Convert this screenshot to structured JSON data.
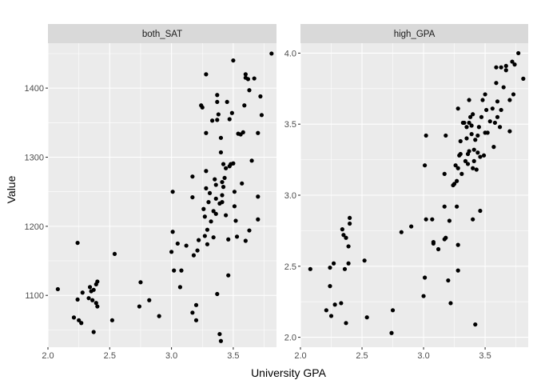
{
  "chart_data": {
    "type": "scatter",
    "xlabel": "University GPA",
    "ylabel": "Value",
    "panels": [
      {
        "facet": "both_SAT",
        "xlim": [
          2.0,
          3.85
        ],
        "ylim": [
          1025,
          1465
        ],
        "xticks": [
          2.0,
          2.5,
          3.0,
          3.5
        ],
        "xtick_labels": [
          "2.0",
          "2.5",
          "3.0",
          "3.5"
        ],
        "yticks": [
          1100,
          1200,
          1300,
          1400
        ],
        "ytick_labels": [
          "1100",
          "1200",
          "1300",
          "1400"
        ],
        "points": [
          [
            2.08,
            1109
          ],
          [
            2.21,
            1068
          ],
          [
            2.24,
            1094
          ],
          [
            2.24,
            1176
          ],
          [
            2.25,
            1064
          ],
          [
            2.27,
            1060
          ],
          [
            2.28,
            1104
          ],
          [
            2.33,
            1096
          ],
          [
            2.34,
            1112
          ],
          [
            2.35,
            1106
          ],
          [
            2.36,
            1093
          ],
          [
            2.37,
            1108
          ],
          [
            2.37,
            1047
          ],
          [
            2.39,
            1116
          ],
          [
            2.4,
            1120
          ],
          [
            2.39,
            1089
          ],
          [
            2.4,
            1084
          ],
          [
            2.52,
            1064
          ],
          [
            2.54,
            1160
          ],
          [
            2.74,
            1084
          ],
          [
            2.75,
            1119
          ],
          [
            2.82,
            1093
          ],
          [
            2.9,
            1070
          ],
          [
            3.0,
            1163
          ],
          [
            3.01,
            1192
          ],
          [
            3.01,
            1250
          ],
          [
            3.02,
            1136
          ],
          [
            3.05,
            1175
          ],
          [
            3.07,
            1112
          ],
          [
            3.08,
            1136
          ],
          [
            3.12,
            1172
          ],
          [
            3.17,
            1242
          ],
          [
            3.17,
            1272
          ],
          [
            3.17,
            1075
          ],
          [
            3.18,
            1158
          ],
          [
            3.2,
            1064
          ],
          [
            3.2,
            1086
          ],
          [
            3.21,
            1165
          ],
          [
            3.22,
            1180
          ],
          [
            3.24,
            1375
          ],
          [
            3.25,
            1372
          ],
          [
            3.26,
            1225
          ],
          [
            3.27,
            1214
          ],
          [
            3.27,
            1186
          ],
          [
            3.28,
            1420
          ],
          [
            3.28,
            1335
          ],
          [
            3.28,
            1255
          ],
          [
            3.28,
            1280
          ],
          [
            3.29,
            1195
          ],
          [
            3.29,
            1174
          ],
          [
            3.3,
            1235
          ],
          [
            3.31,
            1248
          ],
          [
            3.32,
            1207
          ],
          [
            3.33,
            1353
          ],
          [
            3.34,
            1184
          ],
          [
            3.34,
            1222
          ],
          [
            3.35,
            1268
          ],
          [
            3.36,
            1218
          ],
          [
            3.36,
            1240
          ],
          [
            3.36,
            1260
          ],
          [
            3.37,
            1390
          ],
          [
            3.37,
            1380
          ],
          [
            3.37,
            1354
          ],
          [
            3.37,
            1102
          ],
          [
            3.38,
            1362
          ],
          [
            3.39,
            1044
          ],
          [
            3.39,
            1233
          ],
          [
            3.4,
            1034
          ],
          [
            3.4,
            1328
          ],
          [
            3.4,
            1307
          ],
          [
            3.41,
            1264
          ],
          [
            3.41,
            1235
          ],
          [
            3.41,
            1245
          ],
          [
            3.42,
            1290
          ],
          [
            3.42,
            1257
          ],
          [
            3.43,
            1270
          ],
          [
            3.44,
            1284
          ],
          [
            3.44,
            1216
          ],
          [
            3.45,
            1380
          ],
          [
            3.46,
            1181
          ],
          [
            3.46,
            1129
          ],
          [
            3.47,
            1287
          ],
          [
            3.47,
            1355
          ],
          [
            3.48,
            1290
          ],
          [
            3.49,
            1364
          ],
          [
            3.5,
            1440
          ],
          [
            3.5,
            1291
          ],
          [
            3.51,
            1250
          ],
          [
            3.51,
            1229
          ],
          [
            3.52,
            1208
          ],
          [
            3.53,
            1185
          ],
          [
            3.54,
            1334
          ],
          [
            3.56,
            1333
          ],
          [
            3.57,
            1262
          ],
          [
            3.58,
            1336
          ],
          [
            3.59,
            1375
          ],
          [
            3.6,
            1415
          ],
          [
            3.6,
            1420
          ],
          [
            3.6,
            1179
          ],
          [
            3.62,
            1413
          ],
          [
            3.63,
            1397
          ],
          [
            3.63,
            1194
          ],
          [
            3.65,
            1295
          ],
          [
            3.67,
            1414
          ],
          [
            3.7,
            1210
          ],
          [
            3.7,
            1243
          ],
          [
            3.7,
            1335
          ],
          [
            3.72,
            1388
          ],
          [
            3.73,
            1361
          ],
          [
            3.81,
            1450
          ]
        ]
      },
      {
        "facet": "high_GPA",
        "xlim": [
          2.0,
          3.85
        ],
        "ylim": [
          1.93,
          4.07
        ],
        "xticks": [
          2.0,
          2.5,
          3.0,
          3.5
        ],
        "xtick_labels": [
          "2.0",
          "2.5",
          "3.0",
          "3.5"
        ],
        "yticks": [
          2.0,
          2.5,
          3.0,
          3.5,
          4.0
        ],
        "ytick_labels": [
          "2.0",
          "2.5",
          "3.0",
          "3.5",
          "4.0"
        ],
        "points": [
          [
            2.08,
            2.48
          ],
          [
            2.21,
            2.19
          ],
          [
            2.24,
            2.36
          ],
          [
            2.24,
            2.49
          ],
          [
            2.25,
            2.15
          ],
          [
            2.27,
            2.52
          ],
          [
            2.28,
            2.23
          ],
          [
            2.33,
            2.24
          ],
          [
            2.34,
            2.76
          ],
          [
            2.35,
            2.72
          ],
          [
            2.36,
            2.48
          ],
          [
            2.37,
            2.7
          ],
          [
            2.37,
            2.1
          ],
          [
            2.39,
            2.52
          ],
          [
            2.39,
            2.64
          ],
          [
            2.4,
            2.8
          ],
          [
            2.4,
            2.84
          ],
          [
            2.52,
            2.54
          ],
          [
            2.54,
            2.14
          ],
          [
            2.74,
            2.03
          ],
          [
            2.75,
            2.19
          ],
          [
            2.82,
            2.74
          ],
          [
            2.9,
            2.78
          ],
          [
            3.0,
            2.29
          ],
          [
            3.01,
            2.42
          ],
          [
            3.01,
            3.21
          ],
          [
            3.02,
            2.83
          ],
          [
            3.02,
            3.42
          ],
          [
            3.07,
            2.83
          ],
          [
            3.08,
            2.67
          ],
          [
            3.08,
            2.66
          ],
          [
            3.12,
            2.62
          ],
          [
            3.17,
            2.69
          ],
          [
            3.17,
            2.92
          ],
          [
            3.17,
            3.15
          ],
          [
            3.18,
            3.42
          ],
          [
            3.18,
            2.7
          ],
          [
            3.2,
            2.4
          ],
          [
            3.21,
            2.82
          ],
          [
            3.22,
            2.24
          ],
          [
            3.24,
            3.07
          ],
          [
            3.25,
            3.08
          ],
          [
            3.26,
            3.21
          ],
          [
            3.27,
            2.92
          ],
          [
            3.27,
            3.1
          ],
          [
            3.28,
            2.65
          ],
          [
            3.28,
            2.47
          ],
          [
            3.28,
            3.19
          ],
          [
            3.28,
            3.61
          ],
          [
            3.29,
            3.28
          ],
          [
            3.3,
            3.29
          ],
          [
            3.3,
            3.38
          ],
          [
            3.31,
            3.15
          ],
          [
            3.32,
            3.51
          ],
          [
            3.33,
            3.51
          ],
          [
            3.34,
            3.24
          ],
          [
            3.35,
            3.48
          ],
          [
            3.35,
            3.4
          ],
          [
            3.36,
            3.22
          ],
          [
            3.36,
            3.29
          ],
          [
            3.37,
            3.31
          ],
          [
            3.37,
            3.51
          ],
          [
            3.37,
            3.67
          ],
          [
            3.38,
            3.55
          ],
          [
            3.39,
            3.43
          ],
          [
            3.39,
            3.49
          ],
          [
            3.4,
            2.83
          ],
          [
            3.4,
            3.57
          ],
          [
            3.4,
            3.19
          ],
          [
            3.41,
            3.32
          ],
          [
            3.41,
            3.24
          ],
          [
            3.42,
            2.09
          ],
          [
            3.42,
            3.39
          ],
          [
            3.43,
            3.18
          ],
          [
            3.44,
            3.3
          ],
          [
            3.44,
            3.42
          ],
          [
            3.45,
            3.48
          ],
          [
            3.46,
            2.89
          ],
          [
            3.46,
            3.27
          ],
          [
            3.47,
            3.55
          ],
          [
            3.48,
            3.67
          ],
          [
            3.49,
            3.28
          ],
          [
            3.5,
            3.71
          ],
          [
            3.5,
            3.44
          ],
          [
            3.51,
            3.6
          ],
          [
            3.52,
            3.44
          ],
          [
            3.54,
            3.52
          ],
          [
            3.56,
            3.61
          ],
          [
            3.57,
            3.34
          ],
          [
            3.58,
            3.51
          ],
          [
            3.59,
            3.79
          ],
          [
            3.59,
            3.9
          ],
          [
            3.6,
            3.55
          ],
          [
            3.6,
            3.66
          ],
          [
            3.62,
            3.48
          ],
          [
            3.63,
            3.6
          ],
          [
            3.63,
            3.9
          ],
          [
            3.65,
            3.76
          ],
          [
            3.67,
            3.88
          ],
          [
            3.67,
            3.91
          ],
          [
            3.7,
            3.67
          ],
          [
            3.7,
            3.45
          ],
          [
            3.72,
            3.94
          ],
          [
            3.73,
            3.71
          ],
          [
            3.74,
            3.92
          ],
          [
            3.77,
            4.0
          ],
          [
            3.81,
            3.82
          ]
        ]
      }
    ]
  }
}
